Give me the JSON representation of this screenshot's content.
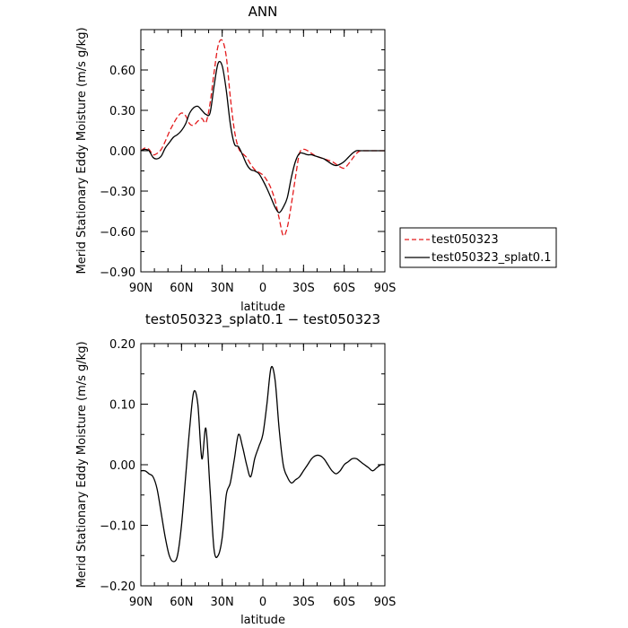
{
  "chart_data": [
    {
      "type": "line",
      "title": "ANN",
      "xlabel": "latitude",
      "ylabel": "Merid Stationary Eddy Moisture (m/s g/kg)",
      "xlim": [
        90,
        -90
      ],
      "ylim": [
        -0.9,
        0.9
      ],
      "x_ticks": [
        90,
        60,
        30,
        0,
        -30,
        -60,
        -90
      ],
      "x_tick_labels": [
        "90N",
        "60N",
        "30N",
        "0",
        "30S",
        "60S",
        "90S"
      ],
      "y_ticks": [
        -0.9,
        -0.6,
        -0.3,
        0.0,
        0.3,
        0.6
      ],
      "y_tick_labels": [
        "−0.90",
        "−0.60",
        "−0.30",
        "0.00",
        "0.30",
        "0.60"
      ],
      "legend": "outside-right",
      "grid": false,
      "series": [
        {
          "name": "test050323",
          "color": "#e41a1c",
          "dash": "dashed",
          "x": [
            90,
            87,
            84,
            81,
            78,
            75,
            72,
            69,
            66,
            63,
            60,
            57,
            54,
            51,
            48,
            45,
            42,
            39,
            36,
            33,
            30,
            27,
            24,
            21,
            18,
            15,
            12,
            9,
            6,
            3,
            0,
            -3,
            -6,
            -9,
            -12,
            -15,
            -18,
            -21,
            -24,
            -27,
            -30,
            -33,
            -36,
            -39,
            -42,
            -45,
            -48,
            -51,
            -54,
            -57,
            -60,
            -63,
            -66,
            -69,
            -72,
            -75,
            -78,
            -81,
            -84,
            -87,
            -90
          ],
          "y": [
            0.0,
            0.02,
            0.01,
            -0.03,
            -0.02,
            0.01,
            0.07,
            0.14,
            0.2,
            0.25,
            0.28,
            0.26,
            0.2,
            0.19,
            0.22,
            0.24,
            0.21,
            0.35,
            0.58,
            0.78,
            0.82,
            0.7,
            0.4,
            0.15,
            0.02,
            -0.02,
            -0.05,
            -0.1,
            -0.14,
            -0.16,
            -0.18,
            -0.22,
            -0.28,
            -0.37,
            -0.5,
            -0.63,
            -0.57,
            -0.4,
            -0.2,
            -0.02,
            0.01,
            0.0,
            -0.02,
            -0.04,
            -0.05,
            -0.06,
            -0.07,
            -0.08,
            -0.1,
            -0.12,
            -0.13,
            -0.1,
            -0.06,
            -0.02,
            0.0,
            0.0,
            0.0,
            0.0,
            0.0,
            0.0,
            0.0
          ]
        },
        {
          "name": "test050323_splat0.1",
          "color": "#000000",
          "dash": "solid",
          "x": [
            90,
            87,
            84,
            81,
            78,
            75,
            72,
            69,
            66,
            63,
            60,
            57,
            54,
            51,
            48,
            45,
            42,
            39,
            36,
            33,
            30,
            27,
            24,
            21,
            18,
            15,
            12,
            9,
            6,
            3,
            0,
            -3,
            -6,
            -9,
            -12,
            -15,
            -18,
            -21,
            -24,
            -27,
            -30,
            -33,
            -36,
            -39,
            -42,
            -45,
            -48,
            -51,
            -54,
            -57,
            -60,
            -63,
            -66,
            -69,
            -72,
            -75,
            -78,
            -81,
            -84,
            -87,
            -90
          ],
          "y": [
            0.0,
            0.01,
            0.0,
            -0.05,
            -0.06,
            -0.04,
            0.02,
            0.06,
            0.1,
            0.12,
            0.15,
            0.2,
            0.28,
            0.32,
            0.33,
            0.3,
            0.27,
            0.28,
            0.48,
            0.65,
            0.63,
            0.45,
            0.2,
            0.05,
            0.03,
            -0.03,
            -0.1,
            -0.14,
            -0.15,
            -0.17,
            -0.22,
            -0.28,
            -0.35,
            -0.42,
            -0.46,
            -0.42,
            -0.35,
            -0.2,
            -0.08,
            -0.02,
            -0.02,
            -0.03,
            -0.03,
            -0.04,
            -0.05,
            -0.06,
            -0.08,
            -0.1,
            -0.11,
            -0.1,
            -0.08,
            -0.05,
            -0.02,
            0.0,
            0.0,
            0.0,
            0.0,
            0.0,
            0.0,
            0.0,
            0.0
          ]
        }
      ]
    },
    {
      "type": "line",
      "title": "test050323_splat0.1 − test050323",
      "xlabel": "latitude",
      "ylabel": "Merid Stationary Eddy Moisture (m/s g/kg)",
      "xlim": [
        90,
        -90
      ],
      "ylim": [
        -0.2,
        0.2
      ],
      "x_ticks": [
        90,
        60,
        30,
        0,
        -30,
        -60,
        -90
      ],
      "x_tick_labels": [
        "90N",
        "60N",
        "30N",
        "0",
        "30S",
        "60S",
        "90S"
      ],
      "y_ticks": [
        -0.2,
        -0.1,
        0.0,
        0.1,
        0.2
      ],
      "y_tick_labels": [
        "−0.20",
        "−0.10",
        "0.00",
        "0.10",
        "0.20"
      ],
      "grid": false,
      "series": [
        {
          "color": "#000000",
          "dash": "solid",
          "x": [
            90,
            87,
            84,
            81,
            78,
            75,
            72,
            69,
            66,
            63,
            60,
            57,
            54,
            51,
            48,
            45,
            42,
            39,
            36,
            33,
            30,
            27,
            24,
            21,
            18,
            15,
            12,
            9,
            6,
            3,
            0,
            -3,
            -6,
            -9,
            -12,
            -15,
            -18,
            -21,
            -24,
            -27,
            -30,
            -33,
            -36,
            -39,
            -42,
            -45,
            -48,
            -51,
            -54,
            -57,
            -60,
            -63,
            -66,
            -69,
            -72,
            -75,
            -78,
            -81,
            -84,
            -87,
            -90
          ],
          "y": [
            -0.01,
            -0.01,
            -0.015,
            -0.02,
            -0.04,
            -0.08,
            -0.12,
            -0.15,
            -0.16,
            -0.15,
            -0.1,
            -0.02,
            0.06,
            0.12,
            0.1,
            0.01,
            0.06,
            -0.04,
            -0.14,
            -0.15,
            -0.12,
            -0.05,
            -0.03,
            0.01,
            0.05,
            0.03,
            0.0,
            -0.02,
            0.01,
            0.03,
            0.05,
            0.1,
            0.16,
            0.14,
            0.06,
            0.0,
            -0.02,
            -0.03,
            -0.025,
            -0.02,
            -0.01,
            0.0,
            0.01,
            0.015,
            0.015,
            0.01,
            0.0,
            -0.01,
            -0.015,
            -0.01,
            0.0,
            0.005,
            0.01,
            0.01,
            0.005,
            0.0,
            -0.005,
            -0.01,
            -0.005,
            0.0,
            0.0
          ]
        }
      ]
    }
  ]
}
